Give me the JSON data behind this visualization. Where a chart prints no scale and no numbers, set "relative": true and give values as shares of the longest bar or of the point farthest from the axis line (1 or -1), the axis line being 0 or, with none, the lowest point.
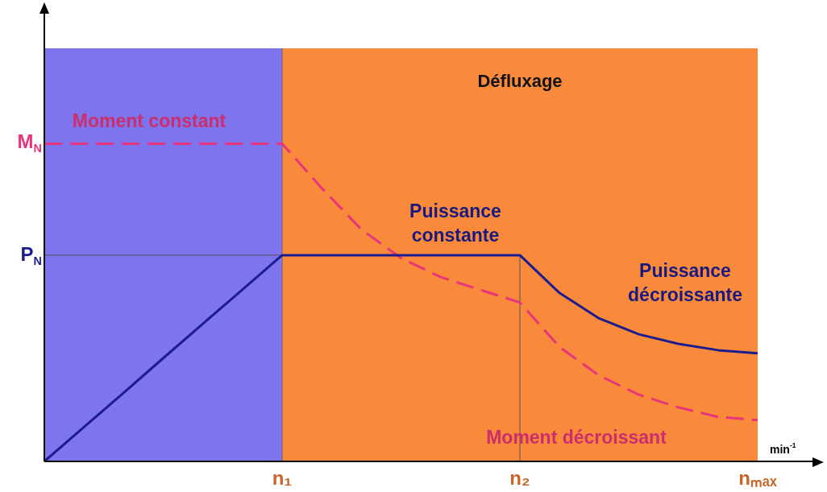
{
  "chart_data": {
    "type": "line",
    "relative": true,
    "xlabel": "min$^{-1}$",
    "categories": [
      null,
      null,
      null,
      null,
      null,
      null,
      "n₁",
      null,
      null,
      null,
      null,
      null,
      "n₂",
      null,
      null,
      null,
      null,
      null,
      "nₘₐₓ"
    ],
    "legend": false,
    "marker": "none",
    "series": [
      {
        "color": "#1c1c8f",
        "line_style": "solid",
        "values": [
          0,
          0.108,
          0.216,
          0.325,
          0.433,
          0.541,
          0.649,
          0.649,
          0.649,
          0.649,
          0.649,
          0.649,
          0.649,
          0.53,
          0.45,
          0.4,
          0.37,
          0.35,
          0.34
        ]
      },
      {
        "color": "#e8347a",
        "line_style": "dashed",
        "values": [
          1,
          1,
          1,
          1,
          1,
          1,
          1,
          0.86,
          0.73,
          0.64,
          0.58,
          0.54,
          0.5,
          0.36,
          0.27,
          0.21,
          0.17,
          0.14,
          0.13
        ]
      }
    ],
    "bands": [
      {
        "axis": "x",
        "from": "n₁",
        "to": "nₘₐₓ",
        "color": "#f98a3c",
        "label": "Défluxage"
      }
    ],
    "ref_lines": [
      {
        "axis": "y",
        "value": 0.649,
        "color": "#555555"
      },
      {
        "axis": "x",
        "value": "n₂",
        "color": "#555555"
      }
    ],
    "annotations": [
      "M$_{N}$",
      "P$_{N}$",
      "Moment constant",
      "Puissance\nconstante",
      "Puissance\ndécroissante",
      "Moment décroissant"
    ]
  }
}
